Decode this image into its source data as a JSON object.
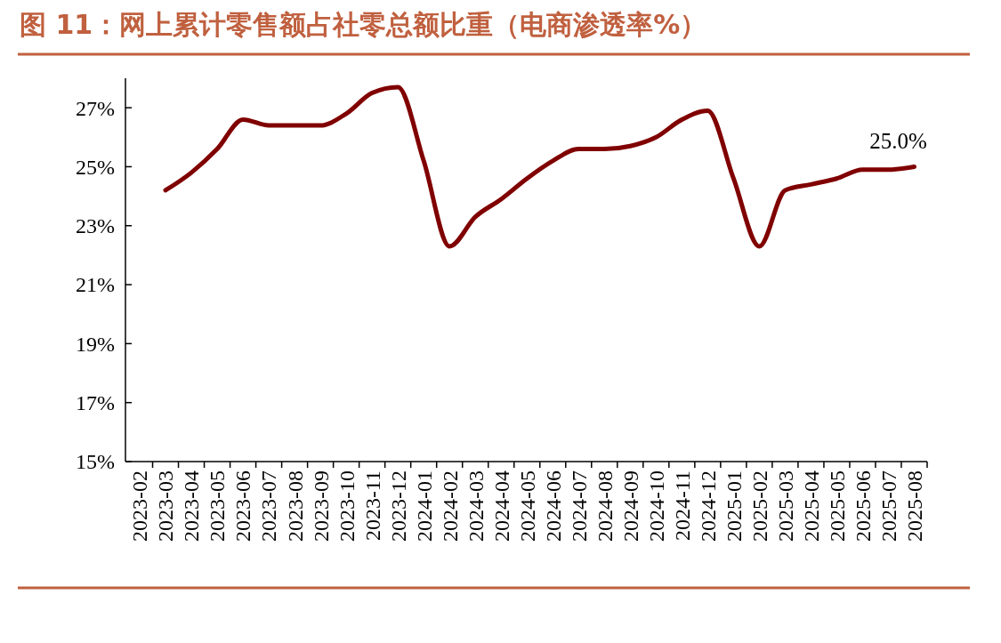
{
  "chart_data": {
    "type": "line",
    "title": "图 11：网上累计零售额占社零总额比重（电商渗透率%）",
    "categories": [
      "2023-02",
      "2023-03",
      "2023-04",
      "2023-05",
      "2023-06",
      "2023-07",
      "2023-08",
      "2023-09",
      "2023-10",
      "2023-11",
      "2023-12",
      "2024-01",
      "2024-02",
      "2024-03",
      "2024-04",
      "2024-05",
      "2024-06",
      "2024-07",
      "2024-08",
      "2024-09",
      "2024-10",
      "2024-11",
      "2024-12",
      "2025-01",
      "2025-02",
      "2025-03",
      "2025-04",
      "2025-05",
      "2025-06",
      "2025-07",
      "2025-08"
    ],
    "series": [
      {
        "color": "#800000",
        "values": [
          null,
          24.2,
          24.8,
          25.6,
          26.6,
          26.4,
          26.4,
          26.4,
          26.8,
          27.5,
          27.7,
          25.2,
          22.3,
          23.3,
          23.9,
          24.6,
          25.2,
          25.6,
          25.6,
          25.7,
          26.0,
          26.6,
          26.9,
          24.6,
          22.3,
          24.2,
          24.4,
          24.6,
          24.9,
          24.9,
          25.0
        ],
        "value_labels": [
          null,
          null,
          null,
          null,
          null,
          null,
          null,
          null,
          null,
          null,
          null,
          null,
          null,
          null,
          null,
          null,
          null,
          null,
          null,
          null,
          null,
          null,
          null,
          null,
          null,
          null,
          null,
          null,
          null,
          null,
          "25.0%"
        ]
      }
    ],
    "ylim": [
      15,
      28
    ],
    "yticks": [
      {
        "value": 15,
        "label": "15%"
      },
      {
        "value": 17,
        "label": "17%"
      },
      {
        "value": 19,
        "label": "19%"
      },
      {
        "value": 21,
        "label": "21%"
      },
      {
        "value": 23,
        "label": "23%"
      },
      {
        "value": 25,
        "label": "25%"
      },
      {
        "value": 27,
        "label": "27%"
      }
    ],
    "grid": false,
    "marker": "none",
    "line_style": "solid"
  }
}
